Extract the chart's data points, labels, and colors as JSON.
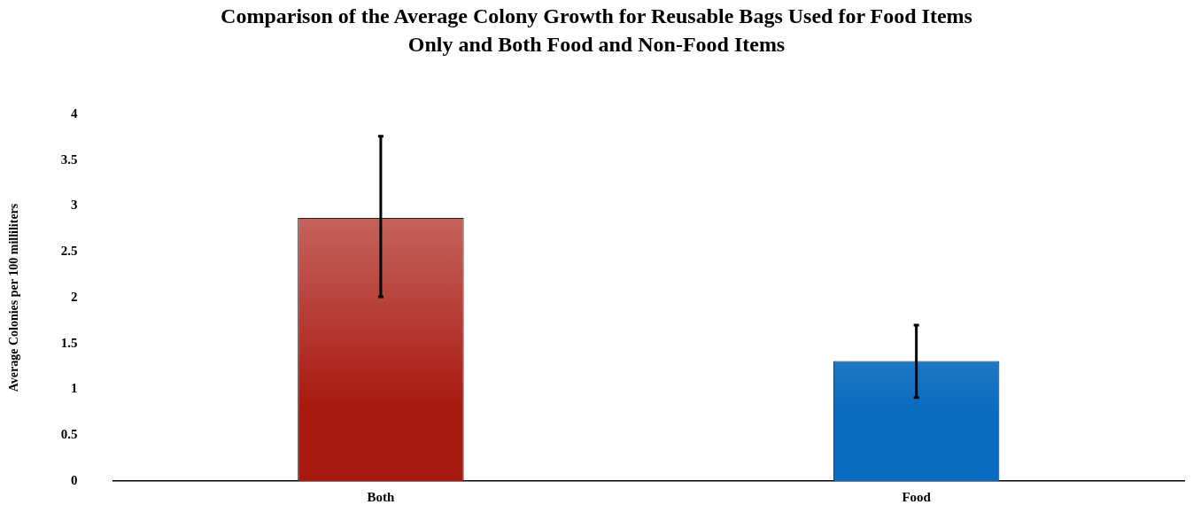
{
  "chart_data": {
    "type": "bar",
    "title": "Comparison of the Average Colony Growth for Reusable Bags Used for Food Items Only and Both Food and Non-Food Items",
    "ylabel": "Average Colonies per 100 milliliters",
    "categories": [
      "Both",
      "Food"
    ],
    "values": [
      2.87,
      1.31
    ],
    "colors": [
      "#a8190f",
      "#0a6cc0"
    ],
    "errors": [
      [
        2.01,
        3.76
      ],
      [
        0.91,
        1.7
      ]
    ],
    "ylim": [
      0,
      4
    ],
    "yticks": [
      0,
      0.5,
      1,
      1.5,
      2,
      2.5,
      3,
      3.5,
      4
    ],
    "grid": false,
    "legend": false
  }
}
